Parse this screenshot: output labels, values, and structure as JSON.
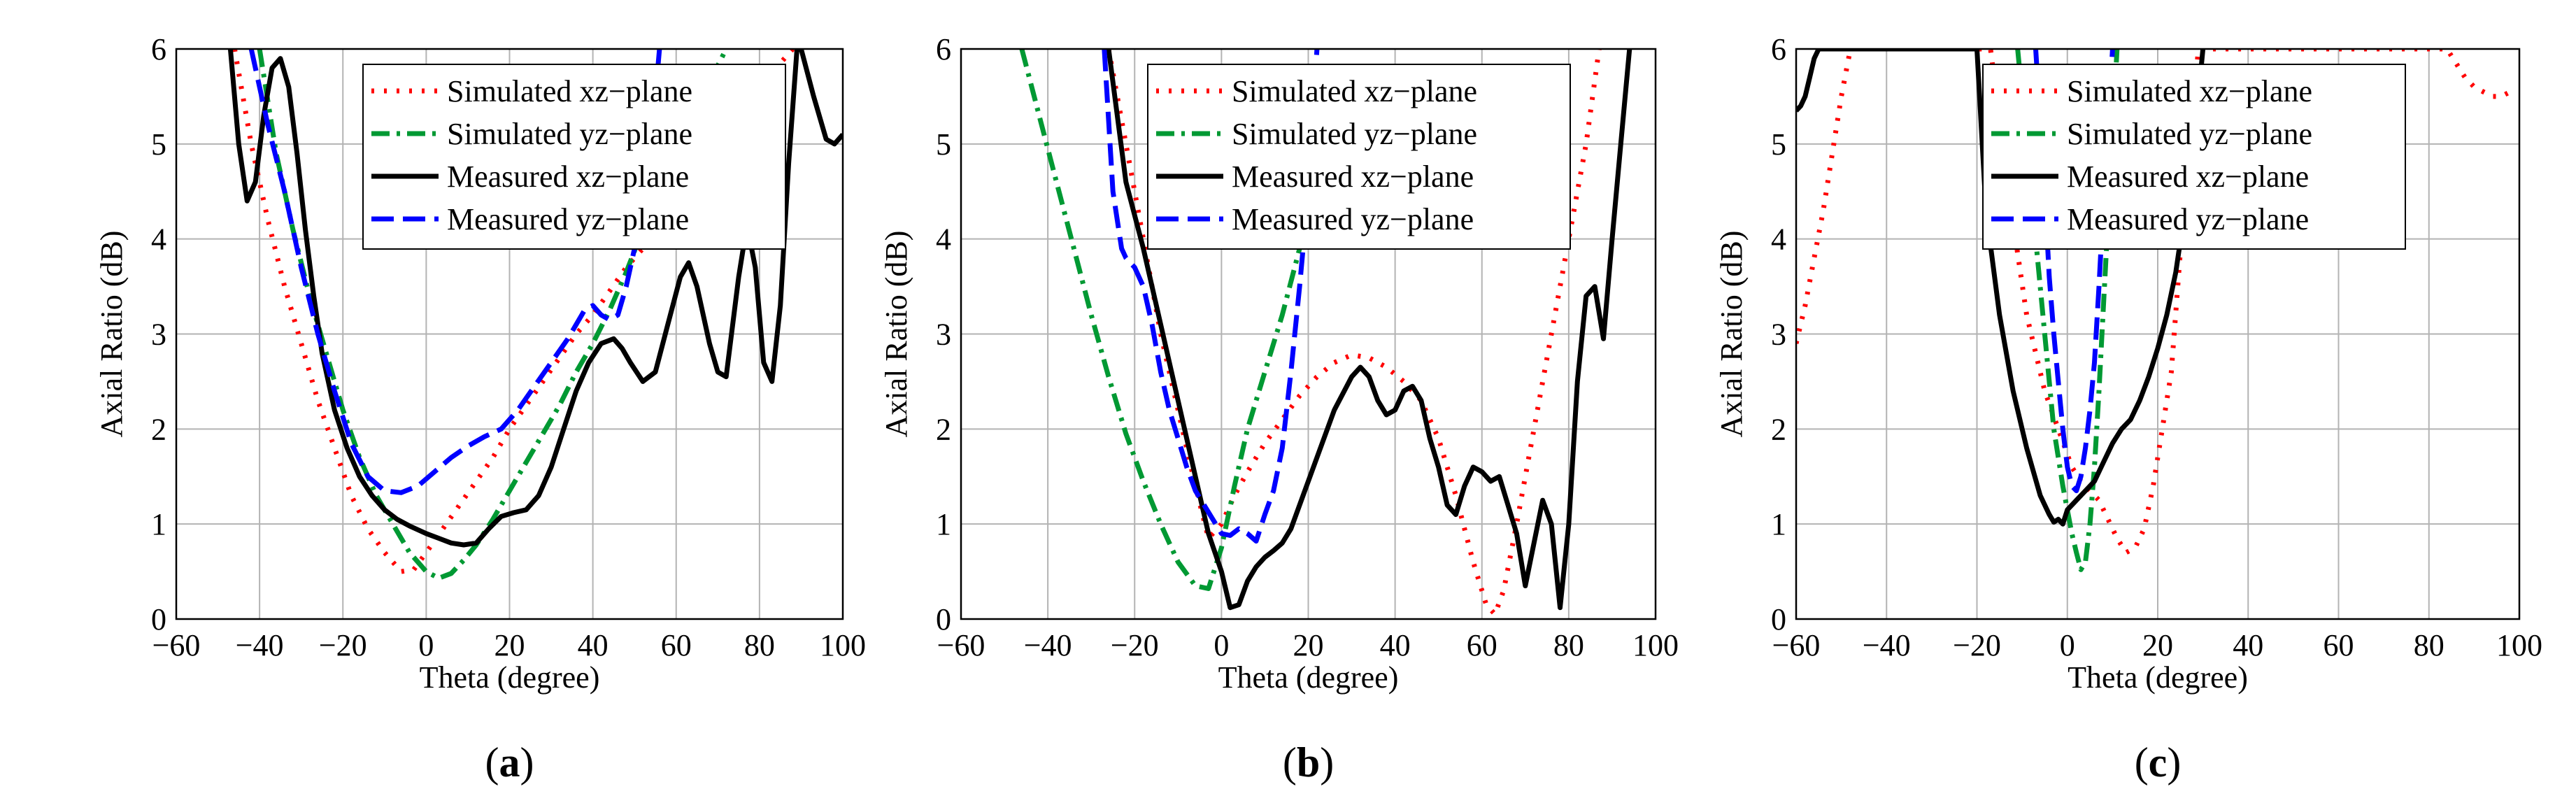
{
  "legend_entries": [
    "Simulated xz−plane",
    "Simulated yz−plane",
    "Measured xz−plane",
    "Measured yz−plane"
  ],
  "series_styles": [
    {
      "color": "#ff0000",
      "dash": "dotted"
    },
    {
      "color": "#009933",
      "dash": "dashdot"
    },
    {
      "color": "#000000",
      "dash": "solid"
    },
    {
      "color": "#0000ff",
      "dash": "dashed"
    }
  ],
  "chart_data": [
    {
      "type": "line",
      "panel_label": "a",
      "xlabel": "Theta (degree)",
      "ylabel": "Axial Ratio (dB)",
      "xlim": [
        -60,
        100
      ],
      "ylim": [
        0,
        6
      ],
      "xticks": [
        "−60",
        "−40",
        "−20",
        "0",
        "20",
        "40",
        "60",
        "80",
        "100"
      ],
      "yticks": [
        "0",
        "1",
        "2",
        "3",
        "4",
        "5",
        "6"
      ],
      "grid": true,
      "legend_position": "top-right",
      "series": [
        {
          "name": "Simulated xz−plane",
          "x": [
            -46,
            -42,
            -38,
            -34,
            -30,
            -26,
            -22,
            -18,
            -14,
            -10,
            -6,
            -3,
            0,
            4,
            8,
            12,
            16,
            20,
            24,
            28,
            32,
            36,
            40,
            44,
            48,
            52,
            56,
            60,
            64,
            68,
            72,
            76,
            80,
            84,
            88
          ],
          "y": [
            6.0,
            5.0,
            4.2,
            3.5,
            2.9,
            2.3,
            1.8,
            1.3,
            0.95,
            0.7,
            0.5,
            0.52,
            0.7,
            0.95,
            1.2,
            1.45,
            1.7,
            2.0,
            2.25,
            2.5,
            2.75,
            3.0,
            3.2,
            3.45,
            3.7,
            3.9,
            4.15,
            4.35,
            4.6,
            4.8,
            5.05,
            5.3,
            5.55,
            5.8,
            6.0
          ]
        },
        {
          "name": "Simulated yz−plane",
          "x": [
            -40,
            -36,
            -32,
            -28,
            -24,
            -20,
            -16,
            -12,
            -8,
            -4,
            0,
            3,
            6,
            9,
            12,
            16,
            20,
            24,
            28,
            32,
            36,
            40,
            44,
            48,
            52,
            56,
            60,
            64,
            68,
            72
          ],
          "y": [
            6.0,
            4.9,
            4.1,
            3.4,
            2.8,
            2.2,
            1.7,
            1.3,
            1.0,
            0.7,
            0.5,
            0.43,
            0.48,
            0.62,
            0.78,
            1.05,
            1.35,
            1.65,
            1.95,
            2.25,
            2.6,
            2.9,
            3.25,
            3.65,
            4.1,
            4.5,
            4.9,
            5.3,
            5.65,
            6.0
          ]
        },
        {
          "name": "Measured xz−plane",
          "x": [
            -47,
            -45,
            -43,
            -41,
            -39,
            -37,
            -35,
            -33,
            -31,
            -29,
            -27,
            -25,
            -22,
            -19,
            -16,
            -13,
            -10,
            -7,
            -4,
            0,
            3,
            6,
            9,
            12,
            15,
            18,
            21,
            24,
            27,
            30,
            33,
            36,
            39,
            42,
            45,
            47,
            49,
            52,
            55,
            58,
            61,
            63,
            65,
            68,
            70,
            72,
            75,
            77,
            79,
            81,
            83,
            85,
            87,
            89,
            90,
            93,
            96,
            98,
            100
          ],
          "y": [
            6.0,
            5.0,
            4.4,
            4.6,
            5.3,
            5.8,
            5.9,
            5.6,
            4.9,
            4.1,
            3.4,
            2.8,
            2.2,
            1.8,
            1.5,
            1.3,
            1.15,
            1.05,
            0.98,
            0.9,
            0.85,
            0.8,
            0.78,
            0.8,
            0.95,
            1.08,
            1.12,
            1.15,
            1.3,
            1.6,
            2.0,
            2.4,
            2.7,
            2.9,
            2.95,
            2.85,
            2.7,
            2.5,
            2.6,
            3.1,
            3.6,
            3.75,
            3.5,
            2.9,
            2.6,
            2.55,
            3.6,
            4.15,
            3.7,
            2.7,
            2.5,
            3.3,
            4.8,
            6.0,
            6.0,
            5.5,
            5.05,
            5.0,
            5.1
          ]
        },
        {
          "name": "Measured yz−plane",
          "x": [
            -42,
            -38,
            -34,
            -30,
            -26,
            -22,
            -18,
            -14,
            -10,
            -6,
            -2,
            2,
            6,
            10,
            14,
            18,
            22,
            26,
            30,
            34,
            38,
            40,
            42,
            44,
            46,
            48,
            50,
            52,
            54,
            56
          ],
          "y": [
            6.0,
            5.2,
            4.5,
            3.7,
            3.0,
            2.4,
            1.85,
            1.5,
            1.35,
            1.33,
            1.4,
            1.55,
            1.7,
            1.82,
            1.92,
            2.0,
            2.2,
            2.45,
            2.7,
            2.95,
            3.25,
            3.3,
            3.2,
            3.15,
            3.2,
            3.5,
            3.9,
            4.4,
            5.0,
            6.0
          ]
        }
      ]
    },
    {
      "type": "line",
      "panel_label": "b",
      "xlabel": "Theta (degree)",
      "ylabel": "Axial Ratio (dB)",
      "xlim": [
        -60,
        100
      ],
      "ylim": [
        0,
        6
      ],
      "xticks": [
        "−60",
        "−40",
        "−20",
        "0",
        "20",
        "40",
        "60",
        "80",
        "100"
      ],
      "yticks": [
        "0",
        "1",
        "2",
        "3",
        "4",
        "5",
        "6"
      ],
      "grid": true,
      "legend_position": "top-right",
      "series": [
        {
          "name": "Simulated xz−plane",
          "x": [
            -26,
            -22,
            -18,
            -14,
            -10,
            -6,
            -3,
            0,
            3,
            6,
            10,
            14,
            18,
            22,
            26,
            30,
            34,
            38,
            42,
            46,
            50,
            54,
            58,
            61,
            63,
            65,
            68,
            72,
            76,
            80,
            84,
            87
          ],
          "y": [
            6.0,
            5.0,
            4.0,
            3.0,
            2.2,
            1.4,
            0.85,
            1.0,
            1.3,
            1.55,
            1.85,
            2.1,
            2.35,
            2.55,
            2.7,
            2.78,
            2.75,
            2.65,
            2.5,
            2.3,
            1.9,
            1.3,
            0.6,
            0.15,
            0.05,
            0.3,
            1.0,
            2.0,
            3.0,
            4.0,
            5.0,
            6.0
          ]
        },
        {
          "name": "Simulated yz−plane",
          "x": [
            -46,
            -42,
            -38,
            -34,
            -30,
            -26,
            -22,
            -18,
            -14,
            -10,
            -6,
            -3,
            0,
            3,
            6,
            10,
            14,
            18,
            22
          ],
          "y": [
            6.0,
            5.3,
            4.6,
            3.9,
            3.2,
            2.55,
            1.95,
            1.45,
            1.0,
            0.6,
            0.35,
            0.32,
            0.75,
            1.4,
            2.0,
            2.6,
            3.2,
            3.9,
            4.7
          ]
        },
        {
          "name": "Measured xz−plane",
          "x": [
            -26,
            -22,
            -18,
            -14,
            -10,
            -6,
            -3,
            0,
            2,
            4,
            6,
            8,
            10,
            12,
            14,
            16,
            18,
            22,
            26,
            30,
            32,
            34,
            36,
            38,
            40,
            42,
            44,
            46,
            48,
            50,
            52,
            54,
            56,
            58,
            60,
            62,
            64,
            66,
            68,
            70,
            72,
            74,
            76,
            78,
            80,
            82,
            84,
            86,
            88,
            90,
            92,
            94
          ],
          "y": [
            6.0,
            4.6,
            3.9,
            3.1,
            2.3,
            1.5,
            0.9,
            0.5,
            0.12,
            0.15,
            0.4,
            0.55,
            0.65,
            0.72,
            0.8,
            0.95,
            1.2,
            1.7,
            2.2,
            2.55,
            2.65,
            2.55,
            2.3,
            2.15,
            2.2,
            2.4,
            2.45,
            2.3,
            1.9,
            1.6,
            1.2,
            1.1,
            1.4,
            1.6,
            1.55,
            1.45,
            1.5,
            1.2,
            0.9,
            0.35,
            0.8,
            1.25,
            1.0,
            0.12,
            1.0,
            2.5,
            3.4,
            3.5,
            2.95,
            4.0,
            5.0,
            6.0
          ]
        },
        {
          "name": "Measured yz−plane",
          "x": [
            -27,
            -25,
            -23,
            -22,
            -20,
            -18,
            -16,
            -14,
            -12,
            -10,
            -8,
            -6,
            -4,
            -2,
            0,
            2,
            4,
            6,
            8,
            10,
            12,
            14,
            16,
            18,
            20,
            22
          ],
          "y": [
            6.0,
            4.5,
            3.9,
            3.8,
            3.7,
            3.5,
            3.1,
            2.6,
            2.2,
            1.9,
            1.6,
            1.35,
            1.2,
            1.05,
            0.9,
            0.88,
            0.95,
            0.9,
            0.82,
            1.1,
            1.35,
            1.8,
            2.6,
            3.5,
            4.5,
            6.0
          ]
        }
      ]
    },
    {
      "type": "line",
      "panel_label": "c",
      "xlabel": "Theta (degree)",
      "ylabel": "Axial Ratio (dB)",
      "xlim": [
        -60,
        100
      ],
      "ylim": [
        0,
        6
      ],
      "xticks": [
        "−60",
        "−40",
        "−20",
        "0",
        "20",
        "40",
        "60",
        "80",
        "100"
      ],
      "yticks": [
        "0",
        "1",
        "2",
        "3",
        "4",
        "5",
        "6"
      ],
      "grid": true,
      "legend_position": "top-right",
      "series": [
        {
          "name": "Simulated xz−plane",
          "x": [
            -60,
            -58,
            -56,
            -54,
            -52,
            -50,
            -48,
            -17,
            -13,
            -9,
            -5,
            -2,
            1,
            3,
            5,
            7,
            9,
            11,
            13,
            15,
            17,
            19,
            21,
            23,
            26,
            29,
            84,
            86,
            88,
            90,
            92,
            94,
            96,
            98
          ],
          "y": [
            2.9,
            3.3,
            3.8,
            4.3,
            4.9,
            5.5,
            6.0,
            6.0,
            4.5,
            3.2,
            2.4,
            2.0,
            1.6,
            1.45,
            1.35,
            1.25,
            1.05,
            0.85,
            0.7,
            0.75,
            0.95,
            1.4,
            2.0,
            2.6,
            4.5,
            6.0,
            6.0,
            5.85,
            5.7,
            5.6,
            5.55,
            5.5,
            5.5,
            5.55
          ]
        },
        {
          "name": "Simulated yz−plane",
          "x": [
            -11,
            -9,
            -7,
            -5,
            -3,
            -1,
            1,
            2,
            3,
            4,
            5,
            6,
            7,
            8,
            9,
            10,
            11
          ],
          "y": [
            6.0,
            5.0,
            4.0,
            3.0,
            2.0,
            1.4,
            0.9,
            0.7,
            0.52,
            0.6,
            1.0,
            1.6,
            2.4,
            3.3,
            4.2,
            5.1,
            6.0
          ]
        },
        {
          "name": "Measured xz−plane",
          "x": [
            -60,
            -59,
            -58,
            -57,
            -56,
            -55,
            -54,
            -20,
            -18,
            -15,
            -12,
            -9,
            -6,
            -4,
            -3,
            -2,
            -1,
            0,
            2,
            4,
            6,
            8,
            10,
            12,
            14,
            16,
            18,
            20,
            22,
            24,
            26,
            28,
            30
          ],
          "y": [
            5.35,
            5.4,
            5.5,
            5.7,
            5.9,
            6.0,
            6.0,
            6.0,
            4.3,
            3.2,
            2.4,
            1.8,
            1.3,
            1.1,
            1.02,
            1.05,
            1.0,
            1.15,
            1.25,
            1.35,
            1.45,
            1.65,
            1.85,
            2.0,
            2.1,
            2.3,
            2.55,
            2.85,
            3.2,
            3.65,
            4.3,
            5.0,
            6.0
          ]
        },
        {
          "name": "Measured yz−plane",
          "x": [
            -7,
            -5,
            -4,
            -3,
            -2,
            -1,
            0,
            1,
            2,
            3,
            4,
            5,
            6,
            7,
            8,
            9,
            10
          ],
          "y": [
            6.0,
            4.5,
            3.6,
            3.0,
            2.5,
            2.0,
            1.6,
            1.4,
            1.35,
            1.5,
            1.8,
            2.2,
            2.7,
            3.5,
            4.4,
            5.2,
            6.0
          ]
        }
      ]
    }
  ]
}
